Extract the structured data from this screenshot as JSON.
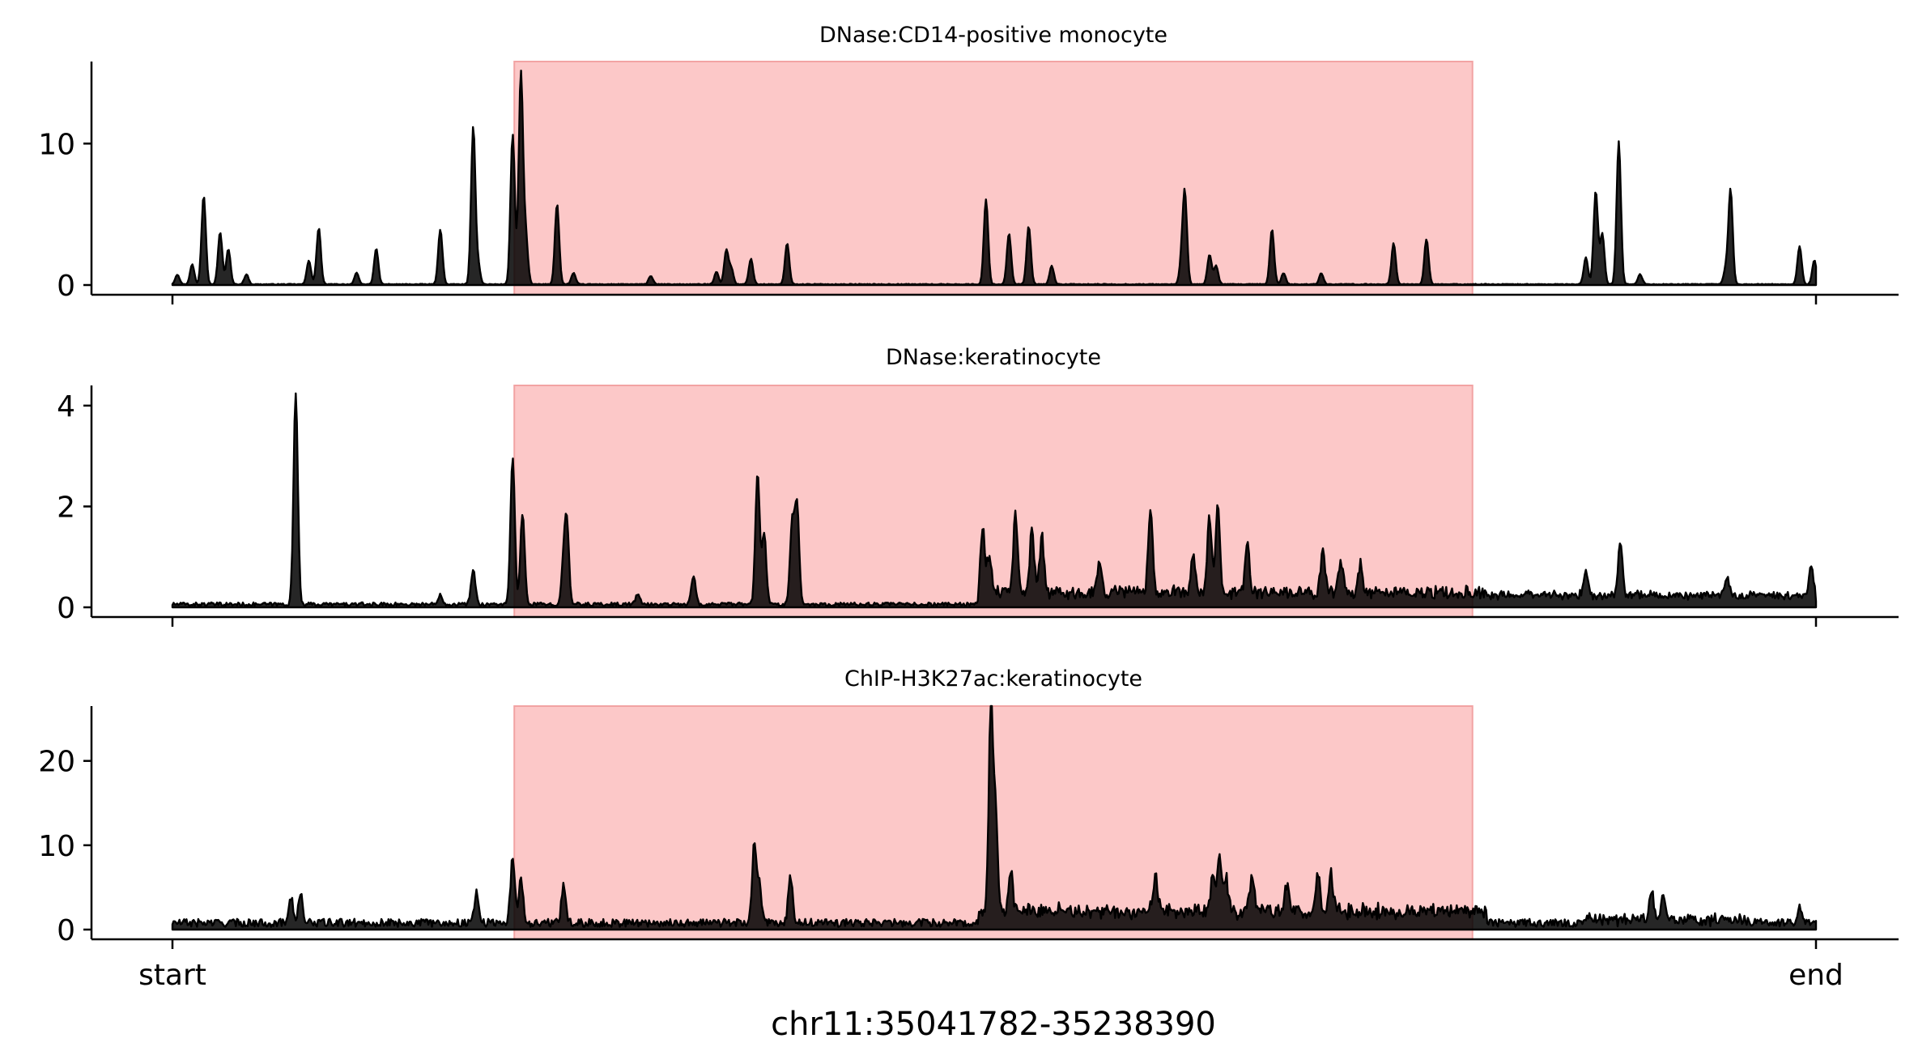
{
  "chart_data": {
    "type": "area",
    "xlabel": "chr11:35041782-35238390",
    "x_ticks": [
      "start",
      "end"
    ],
    "x_range": [
      0,
      1000
    ],
    "highlight_region": {
      "x": [
        208,
        791
      ],
      "color": "#fcc8c8"
    },
    "series_color": "#000000",
    "tracks": [
      {
        "title": "DNase:CD14-positive monocyte",
        "ylim": [
          0,
          15.8
        ],
        "yticks": [
          0,
          10
        ],
        "baseline": 0.05,
        "peaks": [
          {
            "x": 3,
            "y": 0.7
          },
          {
            "x": 12,
            "y": 1.4
          },
          {
            "x": 19,
            "y": 6.3
          },
          {
            "x": 29,
            "y": 3.7
          },
          {
            "x": 34,
            "y": 2.5
          },
          {
            "x": 45,
            "y": 0.7
          },
          {
            "x": 83,
            "y": 1.7
          },
          {
            "x": 89,
            "y": 4.0
          },
          {
            "x": 112,
            "y": 0.8
          },
          {
            "x": 124,
            "y": 2.5
          },
          {
            "x": 163,
            "y": 3.9
          },
          {
            "x": 183,
            "y": 11.1
          },
          {
            "x": 186,
            "y": 1.3
          },
          {
            "x": 207,
            "y": 10.6
          },
          {
            "x": 212,
            "y": 14.9
          },
          {
            "x": 215,
            "y": 3.3
          },
          {
            "x": 234,
            "y": 5.7
          },
          {
            "x": 244,
            "y": 0.8
          },
          {
            "x": 291,
            "y": 0.6
          },
          {
            "x": 331,
            "y": 0.9
          },
          {
            "x": 337,
            "y": 2.4
          },
          {
            "x": 340,
            "y": 1.1
          },
          {
            "x": 352,
            "y": 1.8
          },
          {
            "x": 374,
            "y": 2.9
          },
          {
            "x": 495,
            "y": 6.0
          },
          {
            "x": 509,
            "y": 3.6
          },
          {
            "x": 521,
            "y": 4.1
          },
          {
            "x": 535,
            "y": 1.3
          },
          {
            "x": 616,
            "y": 6.3
          },
          {
            "x": 614,
            "y": 1.4
          },
          {
            "x": 631,
            "y": 2.1
          },
          {
            "x": 635,
            "y": 1.3
          },
          {
            "x": 669,
            "y": 3.9
          },
          {
            "x": 676,
            "y": 0.8
          },
          {
            "x": 699,
            "y": 0.8
          },
          {
            "x": 743,
            "y": 2.9
          },
          {
            "x": 763,
            "y": 3.2
          },
          {
            "x": 860,
            "y": 1.9
          },
          {
            "x": 866,
            "y": 6.6
          },
          {
            "x": 870,
            "y": 3.6
          },
          {
            "x": 880,
            "y": 10.1
          },
          {
            "x": 893,
            "y": 0.7
          },
          {
            "x": 945,
            "y": 1.0
          },
          {
            "x": 948,
            "y": 6.7
          },
          {
            "x": 990,
            "y": 2.7
          },
          {
            "x": 999,
            "y": 1.7
          }
        ]
      },
      {
        "title": "DNase:keratinocyte",
        "ylim": [
          0,
          4.4
        ],
        "yticks": [
          0,
          2,
          4
        ],
        "baseline": 0.06,
        "peaks": [
          {
            "x": 75,
            "y": 4.2
          },
          {
            "x": 163,
            "y": 0.2
          },
          {
            "x": 183,
            "y": 0.7
          },
          {
            "x": 207,
            "y": 2.9
          },
          {
            "x": 213,
            "y": 1.8
          },
          {
            "x": 238,
            "y": 0.8
          },
          {
            "x": 240,
            "y": 1.5
          },
          {
            "x": 283,
            "y": 0.2
          },
          {
            "x": 317,
            "y": 0.55
          },
          {
            "x": 356,
            "y": 2.6
          },
          {
            "x": 360,
            "y": 1.4
          },
          {
            "x": 377,
            "y": 1.6
          },
          {
            "x": 380,
            "y": 2.0
          },
          {
            "x": 493,
            "y": 1.25
          },
          {
            "x": 497,
            "y": 0.7
          },
          {
            "x": 513,
            "y": 1.55
          },
          {
            "x": 523,
            "y": 1.25
          },
          {
            "x": 529,
            "y": 1.15
          },
          {
            "x": 564,
            "y": 0.65
          },
          {
            "x": 595,
            "y": 1.7
          },
          {
            "x": 621,
            "y": 0.8
          },
          {
            "x": 631,
            "y": 1.5
          },
          {
            "x": 636,
            "y": 1.8
          },
          {
            "x": 654,
            "y": 0.95
          },
          {
            "x": 700,
            "y": 0.9
          },
          {
            "x": 711,
            "y": 0.65
          },
          {
            "x": 723,
            "y": 0.6
          },
          {
            "x": 860,
            "y": 0.5
          },
          {
            "x": 881,
            "y": 1.05
          },
          {
            "x": 946,
            "y": 0.35
          },
          {
            "x": 997,
            "y": 0.6
          }
        ]
      },
      {
        "title": "ChIP-H3K27ac:keratinocyte",
        "ylim": [
          0,
          26.5
        ],
        "yticks": [
          0,
          10,
          20
        ],
        "baseline": 0.8,
        "peaks": [
          {
            "x": 72,
            "y": 3.2
          },
          {
            "x": 78,
            "y": 3.4
          },
          {
            "x": 185,
            "y": 3.8
          },
          {
            "x": 207,
            "y": 7.7
          },
          {
            "x": 212,
            "y": 5.5
          },
          {
            "x": 238,
            "y": 4.7
          },
          {
            "x": 354,
            "y": 9.3
          },
          {
            "x": 357,
            "y": 4.5
          },
          {
            "x": 376,
            "y": 5.5
          },
          {
            "x": 498,
            "y": 25.0
          },
          {
            "x": 501,
            "y": 10.8
          },
          {
            "x": 510,
            "y": 4.8
          },
          {
            "x": 598,
            "y": 4.3
          },
          {
            "x": 633,
            "y": 4.3
          },
          {
            "x": 637,
            "y": 6.4
          },
          {
            "x": 641,
            "y": 3.8
          },
          {
            "x": 657,
            "y": 4.3
          },
          {
            "x": 678,
            "y": 3.2
          },
          {
            "x": 697,
            "y": 4.6
          },
          {
            "x": 705,
            "y": 4.6
          },
          {
            "x": 900,
            "y": 3.3
          },
          {
            "x": 907,
            "y": 2.9
          },
          {
            "x": 990,
            "y": 2.2
          }
        ]
      }
    ]
  }
}
